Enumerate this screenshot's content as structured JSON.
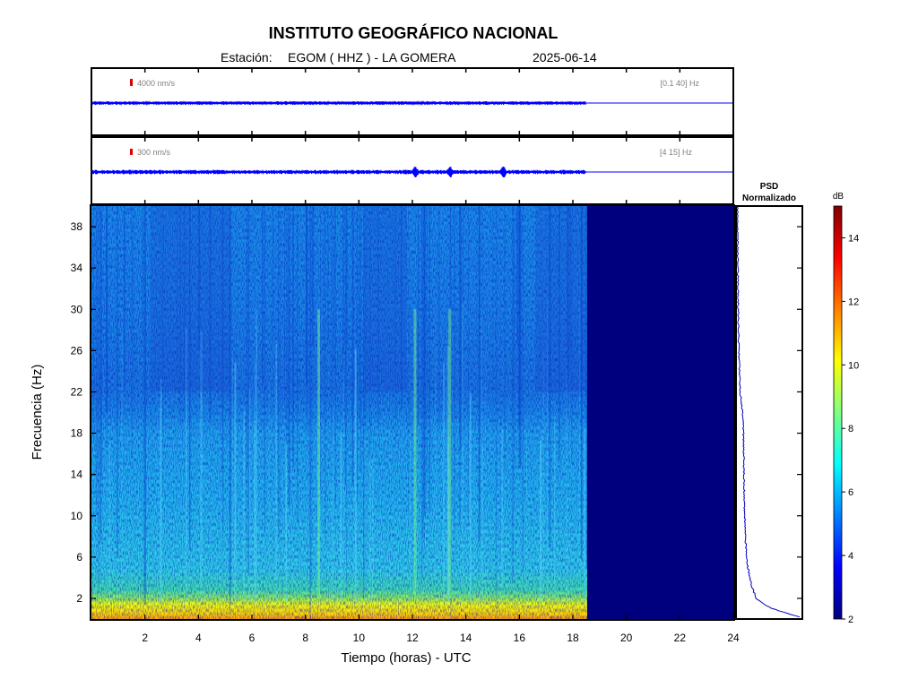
{
  "header": {
    "title": "INSTITUTO GEOGRÁFICO NACIONAL",
    "station_label": "Estación:",
    "station": "EGOM ( HHZ ) - LA GOMERA",
    "date": "2025-06-14"
  },
  "chart_data": [
    {
      "type": "line",
      "panel": "waveform-broadband",
      "scale_label": "4000 nm/s",
      "band_label": "[0.1 40] Hz",
      "x_range": [
        0,
        24
      ],
      "data_end_hour": 18.5,
      "color": "#0000ff"
    },
    {
      "type": "line",
      "panel": "waveform-filtered",
      "scale_label": "300 nm/s",
      "band_label": "[4 15] Hz",
      "x_range": [
        0,
        24
      ],
      "data_end_hour": 18.5,
      "events_hours": [
        12.1,
        13.4,
        15.4
      ],
      "color": "#0000ff"
    },
    {
      "type": "heatmap",
      "panel": "spectrogram",
      "xlabel": "Tiempo (horas) - UTC",
      "ylabel": "Frecuencia  (Hz)",
      "xlim": [
        0,
        24
      ],
      "ylim": [
        0,
        40
      ],
      "x_ticks": [
        2,
        4,
        6,
        8,
        10,
        12,
        14,
        16,
        18,
        20,
        22,
        24
      ],
      "y_ticks": [
        2,
        6,
        10,
        14,
        18,
        22,
        26,
        30,
        34,
        38
      ],
      "data_end_hour": 18.5,
      "no_data_color": "#00007f",
      "bright_bands_hours": [
        8.5,
        12.1,
        13.4
      ]
    },
    {
      "type": "line",
      "panel": "psd",
      "title_line1": "PSD",
      "title_line2": "Normalizado",
      "ylim": [
        0,
        40
      ],
      "color": "#0000bb",
      "profile": [
        {
          "f": 0.2,
          "p": 0.98
        },
        {
          "f": 0.5,
          "p": 0.8
        },
        {
          "f": 1.0,
          "p": 0.55
        },
        {
          "f": 1.5,
          "p": 0.4
        },
        {
          "f": 2,
          "p": 0.3
        },
        {
          "f": 3,
          "p": 0.24
        },
        {
          "f": 4,
          "p": 0.2
        },
        {
          "f": 5,
          "p": 0.17
        },
        {
          "f": 6,
          "p": 0.15
        },
        {
          "f": 8,
          "p": 0.13
        },
        {
          "f": 10,
          "p": 0.12
        },
        {
          "f": 14,
          "p": 0.11
        },
        {
          "f": 18,
          "p": 0.1
        },
        {
          "f": 20,
          "p": 0.09
        },
        {
          "f": 22,
          "p": 0.05
        },
        {
          "f": 26,
          "p": 0.03
        },
        {
          "f": 30,
          "p": 0.02
        },
        {
          "f": 34,
          "p": 0.015
        },
        {
          "f": 38,
          "p": 0.01
        },
        {
          "f": 40,
          "p": 0.01
        }
      ]
    },
    {
      "type": "heatmap",
      "panel": "colorbar",
      "unit": "dB",
      "range": [
        2,
        15
      ],
      "ticks": [
        2,
        4,
        6,
        8,
        10,
        12,
        14
      ]
    }
  ]
}
